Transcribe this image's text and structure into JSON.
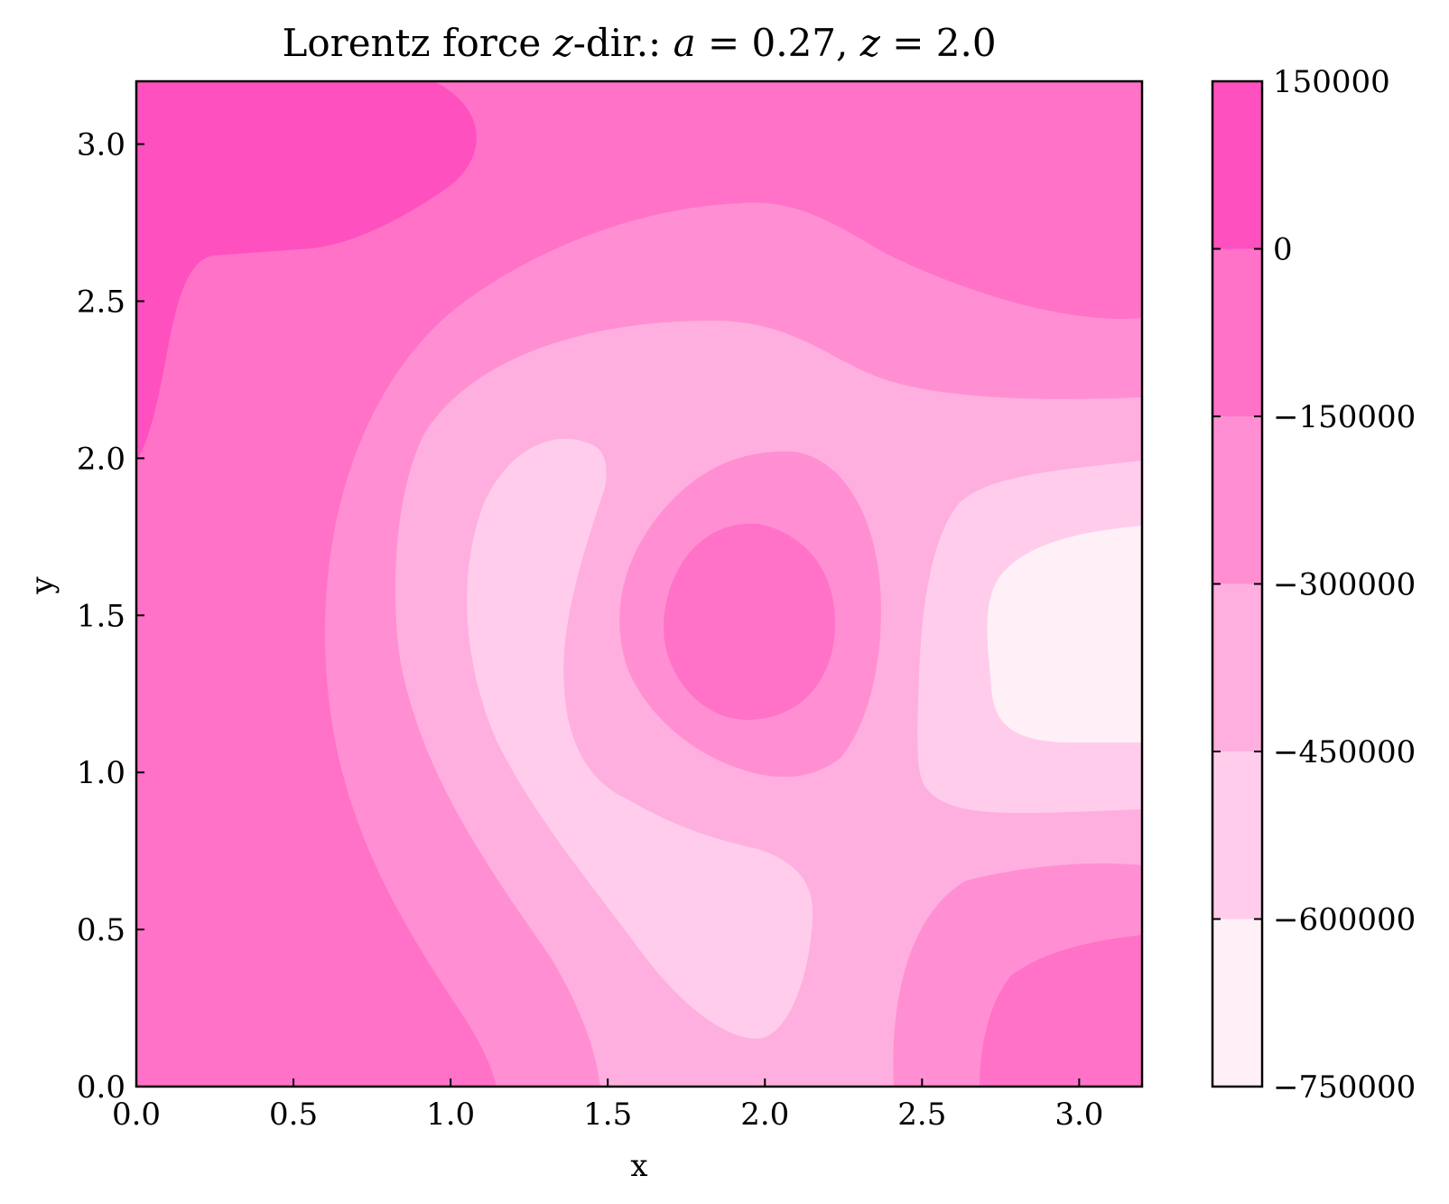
{
  "chart_data": {
    "type": "heatmap",
    "subtype": "filled-contour",
    "title": "Lorentz force z-dir.: a = 0.27, z = 2.0",
    "title_parts": {
      "prefix": "Lorentz force ",
      "var_z": "z",
      "mid": "-dir.: ",
      "var_a": "a",
      "a_eq": " = 0.27, ",
      "var_z2": "z",
      "z_eq": " = 2.0"
    },
    "xlabel": "x",
    "ylabel": "y",
    "xlim": [
      0,
      3.2
    ],
    "ylim": [
      0,
      3.2
    ],
    "xticks": [
      0.0,
      0.5,
      1.0,
      1.5,
      2.0,
      2.5,
      3.0
    ],
    "yticks": [
      0.0,
      0.5,
      1.0,
      1.5,
      2.0,
      2.5,
      3.0
    ],
    "xtick_labels": [
      "0.0",
      "0.5",
      "1.0",
      "1.5",
      "2.0",
      "2.5",
      "3.0"
    ],
    "ytick_labels": [
      "0.0",
      "0.5",
      "1.0",
      "1.5",
      "2.0",
      "2.5",
      "3.0"
    ],
    "colorbar": {
      "levels": [
        -750000,
        -600000,
        -450000,
        -300000,
        -150000,
        0,
        150000
      ],
      "tick_labels": [
        "−750000",
        "−600000",
        "−450000",
        "−300000",
        "−150000",
        "0",
        "150000"
      ],
      "colors": [
        "#fff0f7",
        "#ffcdeb",
        "#ffafdf",
        "#ff8fd2",
        "#ff72c8",
        "#ff50bf"
      ]
    },
    "regions": [
      {
        "name": "top-left-maximum",
        "band": [
          0,
          150000
        ],
        "center": [
          0.5,
          2.9
        ]
      },
      {
        "name": "center-island",
        "band": [
          -150000,
          0
        ],
        "center": [
          1.93,
          1.45
        ]
      },
      {
        "name": "bottom-right-corner",
        "band": [
          -150000,
          0
        ],
        "center": [
          2.95,
          0.25
        ]
      },
      {
        "name": "right-minimum",
        "band": [
          -750000,
          -600000
        ],
        "center": [
          3.05,
          1.4
        ]
      },
      {
        "name": "left-crescent",
        "band": [
          -600000,
          -450000
        ],
        "center": [
          1.5,
          1.0
        ]
      }
    ]
  }
}
